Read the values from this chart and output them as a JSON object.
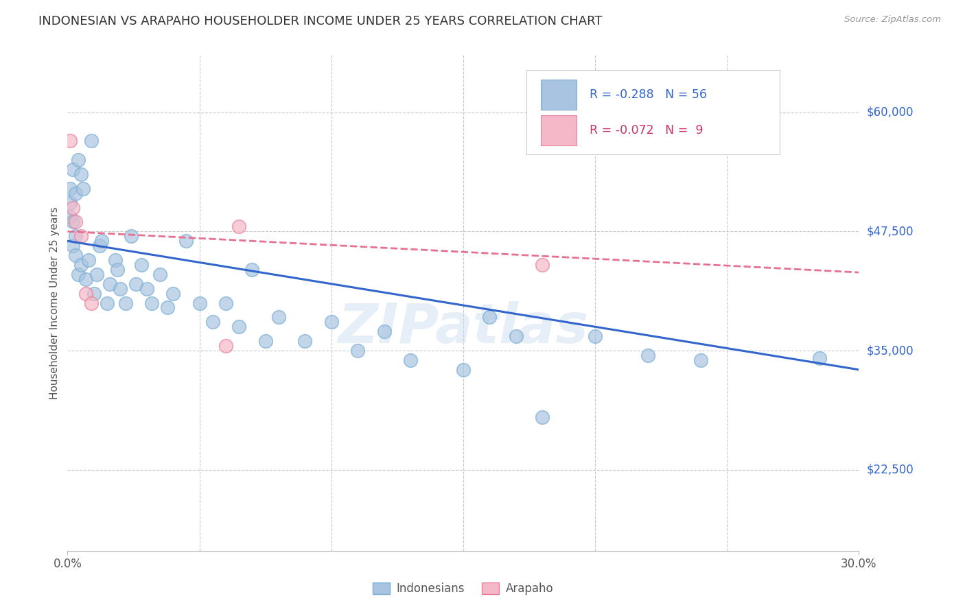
{
  "title": "INDONESIAN VS ARAPAHO HOUSEHOLDER INCOME UNDER 25 YEARS CORRELATION CHART",
  "source": "Source: ZipAtlas.com",
  "ylabel": "Householder Income Under 25 years",
  "x_min": 0.0,
  "x_max": 0.3,
  "y_min": 14000,
  "y_max": 66000,
  "y_ticks": [
    22500,
    35000,
    47500,
    60000
  ],
  "y_tick_labels": [
    "$22,500",
    "$35,000",
    "$47,500",
    "$60,000"
  ],
  "legend_r_blue": "-0.288",
  "legend_n_blue": "56",
  "legend_r_pink": "-0.072",
  "legend_n_pink": " 9",
  "blue_fill": "#A8C4E0",
  "blue_edge": "#7AAFD4",
  "pink_fill": "#F4B8C8",
  "pink_edge": "#E8809A",
  "line_blue_color": "#3366CC",
  "line_pink_color": "#E87090",
  "indonesian_x": [
    0.001,
    0.001,
    0.001,
    0.002,
    0.002,
    0.002,
    0.003,
    0.003,
    0.003,
    0.004,
    0.004,
    0.005,
    0.005,
    0.006,
    0.007,
    0.008,
    0.009,
    0.01,
    0.011,
    0.012,
    0.013,
    0.015,
    0.016,
    0.018,
    0.019,
    0.02,
    0.022,
    0.024,
    0.026,
    0.028,
    0.03,
    0.032,
    0.035,
    0.038,
    0.04,
    0.045,
    0.05,
    0.055,
    0.06,
    0.065,
    0.07,
    0.075,
    0.08,
    0.09,
    0.1,
    0.11,
    0.12,
    0.13,
    0.15,
    0.16,
    0.17,
    0.18,
    0.2,
    0.22,
    0.24,
    0.285
  ],
  "indonesian_y": [
    49000,
    50500,
    52000,
    48500,
    46000,
    54000,
    51500,
    47000,
    45000,
    55000,
    43000,
    53500,
    44000,
    52000,
    42500,
    44500,
    57000,
    41000,
    43000,
    46000,
    46500,
    40000,
    42000,
    44500,
    43500,
    41500,
    40000,
    47000,
    42000,
    44000,
    41500,
    40000,
    43000,
    39500,
    41000,
    46500,
    40000,
    38000,
    40000,
    37500,
    43500,
    36000,
    38500,
    36000,
    38000,
    35000,
    37000,
    34000,
    33000,
    38500,
    36500,
    28000,
    36500,
    34500,
    34000,
    34200
  ],
  "arapaho_x": [
    0.001,
    0.002,
    0.003,
    0.005,
    0.007,
    0.009,
    0.06,
    0.065,
    0.18
  ],
  "arapaho_y": [
    57000,
    50000,
    48500,
    47000,
    41000,
    40000,
    35500,
    48000,
    44000
  ],
  "watermark": "ZIPatlas",
  "background_color": "#FFFFFF",
  "grid_color": "#C8C8C8",
  "blue_line_y0": 46500,
  "blue_line_y1": 33000,
  "pink_line_y0": 47500,
  "pink_line_y1": 43200
}
